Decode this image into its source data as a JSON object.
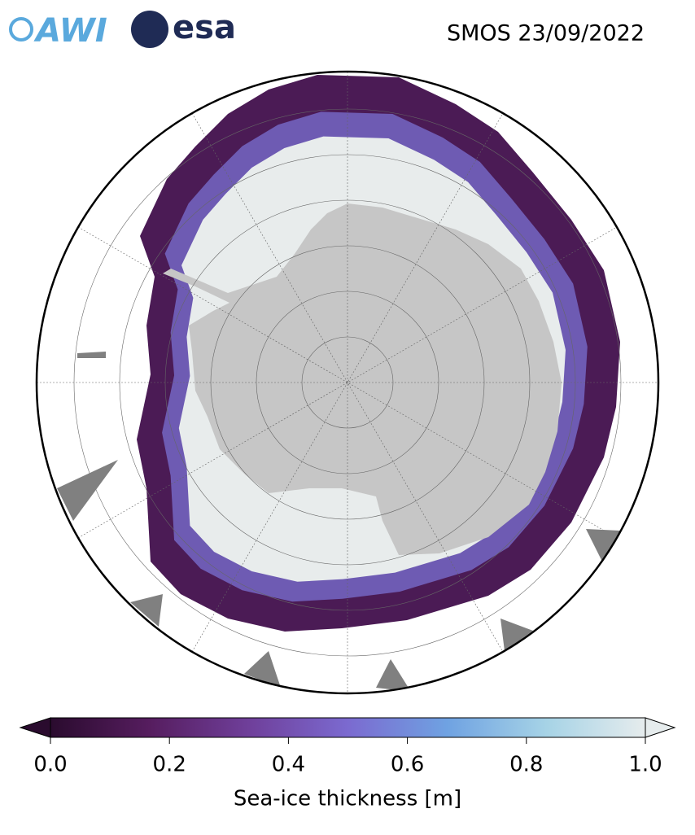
{
  "logos": {
    "awi": "AWI",
    "esa": "esa"
  },
  "map": {
    "title": "SMOS 23/09/2022"
  },
  "colorbar": {
    "label": "Sea-ice thickness [m]",
    "lim": [
      0,
      1
    ],
    "ticks": [
      {
        "value": 0,
        "label": "0.0"
      },
      {
        "value": 0.2,
        "label": "0.2"
      },
      {
        "value": 0.4,
        "label": "0.4"
      },
      {
        "value": 0.6,
        "label": "0.6"
      },
      {
        "value": 0.8,
        "label": "0.8"
      },
      {
        "value": 1,
        "label": "1.0"
      }
    ],
    "colormap": [
      "#2a0b2e",
      "#561d5f",
      "#6f3f9a",
      "#7b6ad0",
      "#6fa2e2",
      "#a6d3e6",
      "#e6eced"
    ]
  }
}
